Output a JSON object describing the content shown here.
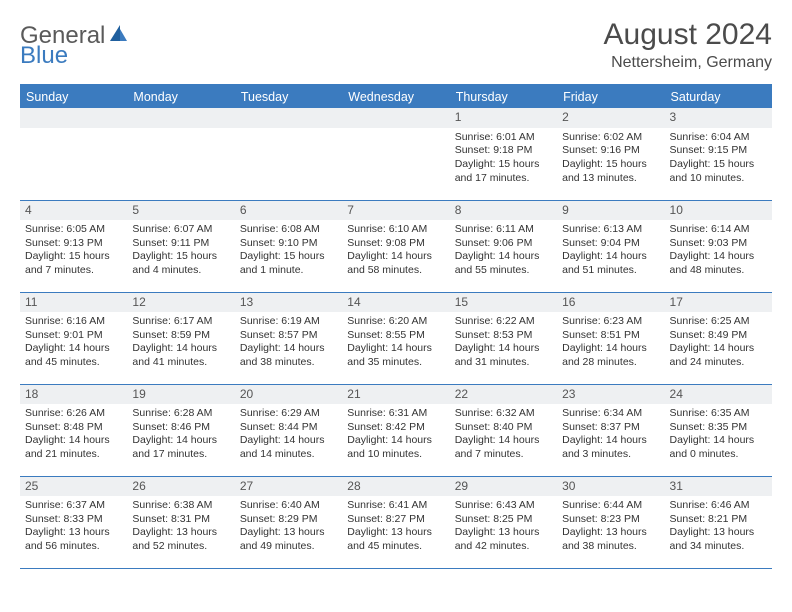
{
  "brand": {
    "part1": "General",
    "part2": "Blue"
  },
  "title": "August 2024",
  "location": "Nettersheim, Germany",
  "colors": {
    "header_blue": "#3b7bbf",
    "row_stripe": "#eef0f2",
    "text": "#333333",
    "title_text": "#4b4b4b",
    "bg": "#ffffff"
  },
  "typography": {
    "title_fontsize": 30,
    "location_fontsize": 16,
    "header_fontsize": 12.5,
    "cell_fontsize": 10.5,
    "daynum_fontsize": 12
  },
  "weekdays": [
    "Sunday",
    "Monday",
    "Tuesday",
    "Wednesday",
    "Thursday",
    "Friday",
    "Saturday"
  ],
  "weeks": [
    [
      null,
      null,
      null,
      null,
      {
        "d": "1",
        "sr": "6:01 AM",
        "ss": "9:18 PM",
        "dl": "15 hours and 17 minutes."
      },
      {
        "d": "2",
        "sr": "6:02 AM",
        "ss": "9:16 PM",
        "dl": "15 hours and 13 minutes."
      },
      {
        "d": "3",
        "sr": "6:04 AM",
        "ss": "9:15 PM",
        "dl": "15 hours and 10 minutes."
      }
    ],
    [
      {
        "d": "4",
        "sr": "6:05 AM",
        "ss": "9:13 PM",
        "dl": "15 hours and 7 minutes."
      },
      {
        "d": "5",
        "sr": "6:07 AM",
        "ss": "9:11 PM",
        "dl": "15 hours and 4 minutes."
      },
      {
        "d": "6",
        "sr": "6:08 AM",
        "ss": "9:10 PM",
        "dl": "15 hours and 1 minute."
      },
      {
        "d": "7",
        "sr": "6:10 AM",
        "ss": "9:08 PM",
        "dl": "14 hours and 58 minutes."
      },
      {
        "d": "8",
        "sr": "6:11 AM",
        "ss": "9:06 PM",
        "dl": "14 hours and 55 minutes."
      },
      {
        "d": "9",
        "sr": "6:13 AM",
        "ss": "9:04 PM",
        "dl": "14 hours and 51 minutes."
      },
      {
        "d": "10",
        "sr": "6:14 AM",
        "ss": "9:03 PM",
        "dl": "14 hours and 48 minutes."
      }
    ],
    [
      {
        "d": "11",
        "sr": "6:16 AM",
        "ss": "9:01 PM",
        "dl": "14 hours and 45 minutes."
      },
      {
        "d": "12",
        "sr": "6:17 AM",
        "ss": "8:59 PM",
        "dl": "14 hours and 41 minutes."
      },
      {
        "d": "13",
        "sr": "6:19 AM",
        "ss": "8:57 PM",
        "dl": "14 hours and 38 minutes."
      },
      {
        "d": "14",
        "sr": "6:20 AM",
        "ss": "8:55 PM",
        "dl": "14 hours and 35 minutes."
      },
      {
        "d": "15",
        "sr": "6:22 AM",
        "ss": "8:53 PM",
        "dl": "14 hours and 31 minutes."
      },
      {
        "d": "16",
        "sr": "6:23 AM",
        "ss": "8:51 PM",
        "dl": "14 hours and 28 minutes."
      },
      {
        "d": "17",
        "sr": "6:25 AM",
        "ss": "8:49 PM",
        "dl": "14 hours and 24 minutes."
      }
    ],
    [
      {
        "d": "18",
        "sr": "6:26 AM",
        "ss": "8:48 PM",
        "dl": "14 hours and 21 minutes."
      },
      {
        "d": "19",
        "sr": "6:28 AM",
        "ss": "8:46 PM",
        "dl": "14 hours and 17 minutes."
      },
      {
        "d": "20",
        "sr": "6:29 AM",
        "ss": "8:44 PM",
        "dl": "14 hours and 14 minutes."
      },
      {
        "d": "21",
        "sr": "6:31 AM",
        "ss": "8:42 PM",
        "dl": "14 hours and 10 minutes."
      },
      {
        "d": "22",
        "sr": "6:32 AM",
        "ss": "8:40 PM",
        "dl": "14 hours and 7 minutes."
      },
      {
        "d": "23",
        "sr": "6:34 AM",
        "ss": "8:37 PM",
        "dl": "14 hours and 3 minutes."
      },
      {
        "d": "24",
        "sr": "6:35 AM",
        "ss": "8:35 PM",
        "dl": "14 hours and 0 minutes."
      }
    ],
    [
      {
        "d": "25",
        "sr": "6:37 AM",
        "ss": "8:33 PM",
        "dl": "13 hours and 56 minutes."
      },
      {
        "d": "26",
        "sr": "6:38 AM",
        "ss": "8:31 PM",
        "dl": "13 hours and 52 minutes."
      },
      {
        "d": "27",
        "sr": "6:40 AM",
        "ss": "8:29 PM",
        "dl": "13 hours and 49 minutes."
      },
      {
        "d": "28",
        "sr": "6:41 AM",
        "ss": "8:27 PM",
        "dl": "13 hours and 45 minutes."
      },
      {
        "d": "29",
        "sr": "6:43 AM",
        "ss": "8:25 PM",
        "dl": "13 hours and 42 minutes."
      },
      {
        "d": "30",
        "sr": "6:44 AM",
        "ss": "8:23 PM",
        "dl": "13 hours and 38 minutes."
      },
      {
        "d": "31",
        "sr": "6:46 AM",
        "ss": "8:21 PM",
        "dl": "13 hours and 34 minutes."
      }
    ]
  ],
  "labels": {
    "sunrise": "Sunrise: ",
    "sunset": "Sunset: ",
    "daylight": "Daylight: "
  }
}
